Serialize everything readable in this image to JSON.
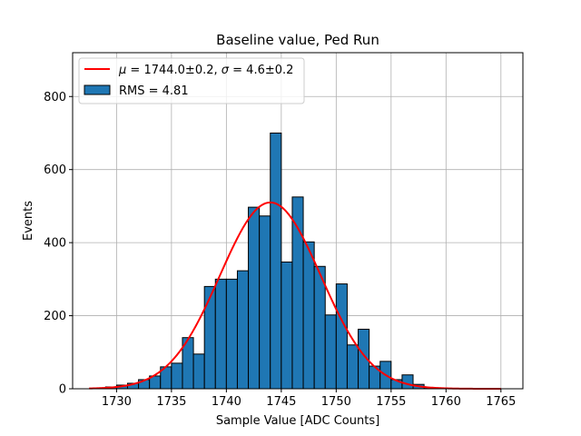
{
  "chart_data": {
    "type": "bar",
    "title": "Baseline value, Ped Run",
    "xlabel": "Sample Value [ADC Counts]",
    "ylabel": "Events",
    "xlim": [
      1726,
      1767
    ],
    "ylim": [
      0,
      920
    ],
    "xticks": [
      1730,
      1735,
      1740,
      1745,
      1750,
      1755,
      1760,
      1765
    ],
    "yticks": [
      0,
      200,
      400,
      600,
      800
    ],
    "grid": true,
    "legend_position": "top-left",
    "bin_width": 1,
    "series": [
      {
        "name": "RMS = 4.81",
        "kind": "histogram",
        "color": "#1f77b4",
        "edge_color": "#000000",
        "bins": [
          {
            "x": 1729.5,
            "value": 5
          },
          {
            "x": 1730.5,
            "value": 10
          },
          {
            "x": 1731.5,
            "value": 15
          },
          {
            "x": 1732.5,
            "value": 25
          },
          {
            "x": 1733.5,
            "value": 35
          },
          {
            "x": 1734.5,
            "value": 60
          },
          {
            "x": 1735.5,
            "value": 70
          },
          {
            "x": 1736.5,
            "value": 140
          },
          {
            "x": 1737.5,
            "value": 95
          },
          {
            "x": 1738.5,
            "value": 280
          },
          {
            "x": 1739.5,
            "value": 300
          },
          {
            "x": 1740.5,
            "value": 300
          },
          {
            "x": 1741.5,
            "value": 323
          },
          {
            "x": 1742.5,
            "value": 497
          },
          {
            "x": 1743.5,
            "value": 473
          },
          {
            "x": 1744.5,
            "value": 700
          },
          {
            "x": 1745.5,
            "value": 347
          },
          {
            "x": 1746.5,
            "value": 525
          },
          {
            "x": 1747.5,
            "value": 402
          },
          {
            "x": 1748.5,
            "value": 335
          },
          {
            "x": 1749.5,
            "value": 202
          },
          {
            "x": 1750.5,
            "value": 287
          },
          {
            "x": 1751.5,
            "value": 120
          },
          {
            "x": 1752.5,
            "value": 163
          },
          {
            "x": 1753.5,
            "value": 62
          },
          {
            "x": 1754.5,
            "value": 75
          },
          {
            "x": 1755.5,
            "value": 25
          },
          {
            "x": 1756.5,
            "value": 38
          },
          {
            "x": 1757.5,
            "value": 12
          },
          {
            "x": 1758.5,
            "value": 3
          }
        ]
      },
      {
        "name": "$\\mu = 1744.0 \\pm 0.2$, $\\sigma = 4.6 \\pm 0.2$",
        "kind": "gaussian_fit",
        "color": "#ff0000",
        "mu": 1744.0,
        "sigma": 4.6,
        "amplitude": 510,
        "x_range": [
          1727.5,
          1765
        ]
      }
    ],
    "legend": {
      "fit_label_parts": [
        "μ",
        " = 1744.0±0.2, ",
        "σ",
        " = 4.6±0.2"
      ],
      "hist_label": "RMS = 4.81"
    }
  }
}
